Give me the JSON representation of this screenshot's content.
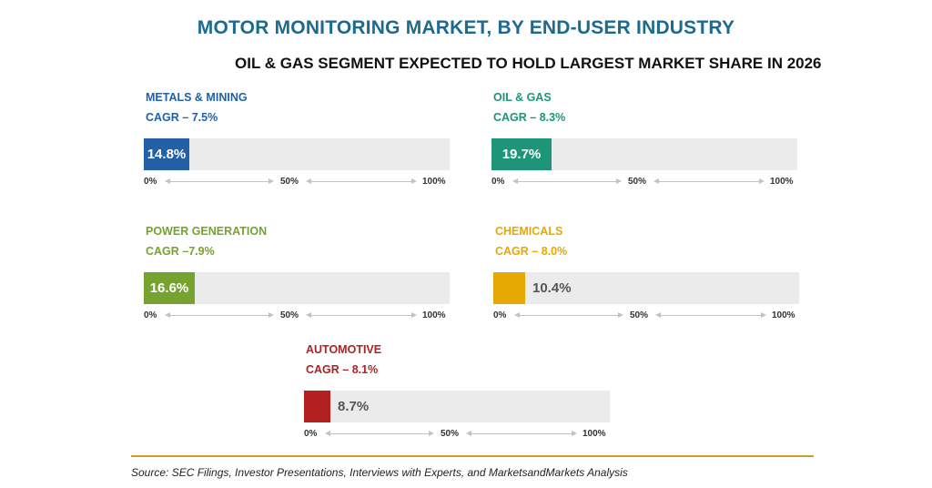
{
  "chart_data": {
    "type": "bar",
    "title": "MOTOR MONITORING MARKET, BY END-USER INDUSTRY",
    "subtitle": "OIL & GAS SEGMENT EXPECTED TO HOLD LARGEST MARKET SHARE IN 2026",
    "axis_ticks": [
      "0%",
      "50%",
      "100%"
    ],
    "xlim": [
      0,
      100
    ],
    "panels": [
      {
        "name": "METALS & MINING",
        "cagr": "CAGR – 7.5%",
        "value": 14.8,
        "label": "14.8%",
        "color": "#2260a8"
      },
      {
        "name": "OIL & GAS",
        "cagr": "CAGR – 8.3%",
        "value": 19.7,
        "label": "19.7%",
        "color": "#1e9479"
      },
      {
        "name": "POWER GENERATION",
        "cagr": "CAGR –7.9%",
        "value": 16.6,
        "label": "16.6%",
        "color": "#76a330"
      },
      {
        "name": "CHEMICALS",
        "cagr": "CAGR – 8.0%",
        "value": 10.4,
        "label": "10.4%",
        "color": "#e6a903"
      },
      {
        "name": "AUTOMOTIVE",
        "cagr": "CAGR – 8.1%",
        "value": 8.7,
        "label": "8.7%",
        "color": "#b22020"
      }
    ]
  },
  "source": "Source: SEC Filings, Investor Presentations, Interviews with Experts, and MarketsandMarkets Analysis"
}
